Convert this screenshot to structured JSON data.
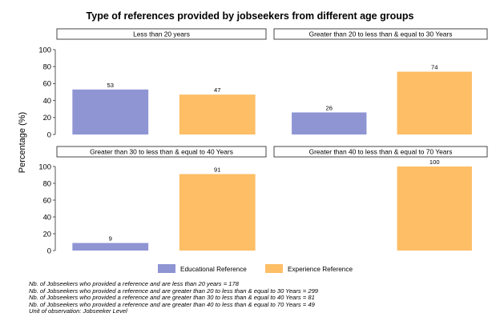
{
  "chart_data": {
    "type": "bar",
    "title": "Type of references provided by jobseekers from different age groups",
    "ylabel": "Percentage (%)",
    "ylim": [
      0,
      100
    ],
    "yticks": [
      0,
      20,
      40,
      60,
      80,
      100
    ],
    "legend_position": "bottom",
    "series": [
      {
        "name": "Educational Reference",
        "color": "#8f95d3"
      },
      {
        "name": "Experience Reference",
        "color": "#fdbe66"
      }
    ],
    "panels": [
      {
        "label": "Less than 20 years",
        "values": [
          53,
          47
        ]
      },
      {
        "label": "Greater than 20 to less than & equal to 30 Years",
        "values": [
          26,
          74
        ]
      },
      {
        "label": "Greater than 30 to less than & equal to 40 Years",
        "values": [
          9,
          91
        ]
      },
      {
        "label": "Greater than 40 to less than & equal to 70 Years",
        "values": [
          null,
          100
        ]
      }
    ]
  },
  "notes": [
    "Nb. of Jobseekers who provided a reference and are less than 20 years = 178",
    "Nb. of Jobseekers who provided a reference and are greater than 20 to less than & equal to 30 Years = 299",
    "Nb. of Jobseekers who provided a reference and are greater than 30 to less than & equal to 40 Years = 81",
    "Nb. of Jobseekers who provided a reference and are greater than 40 to less than & equal to 70 Years = 49",
    "Unit of observation: Jobseeker Level"
  ]
}
